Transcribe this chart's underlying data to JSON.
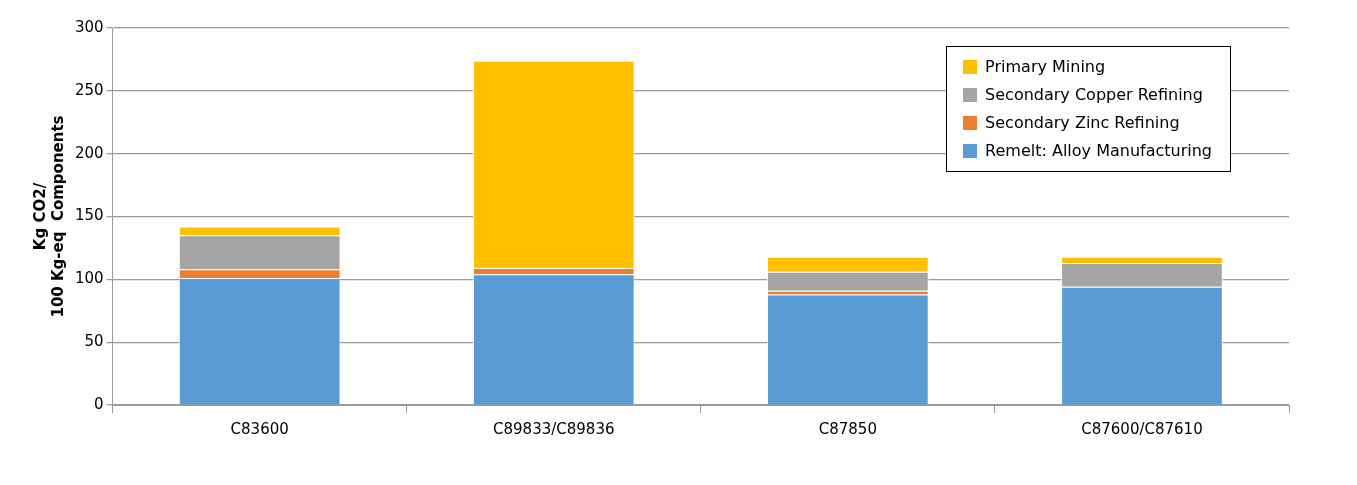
{
  "chart_data": {
    "type": "bar",
    "stacked": true,
    "ylabel": "Kg CO2/\n100 Kg-eq  Components",
    "categories": [
      "C83600",
      "C89833/C89836",
      "C87850",
      "C87600/C87610"
    ],
    "series": [
      {
        "name": "Remelt:  Alloy Manufacturing",
        "color": "#5b9bd5",
        "values": [
          101,
          104,
          88,
          94
        ]
      },
      {
        "name": "Secondary Zinc Refining",
        "color": "#ed7d31",
        "values": [
          7,
          5,
          3,
          0
        ]
      },
      {
        "name": "Secondary Copper Refining",
        "color": "#a5a5a5",
        "values": [
          27,
          0,
          15,
          19
        ]
      },
      {
        "name": "Primary Mining",
        "color": "#ffc000",
        "values": [
          7,
          165,
          12,
          5
        ]
      }
    ],
    "ylim": [
      0,
      300
    ],
    "yticks": [
      0,
      50,
      100,
      150,
      200,
      250,
      300
    ],
    "grid": "y",
    "legend": "top right"
  }
}
